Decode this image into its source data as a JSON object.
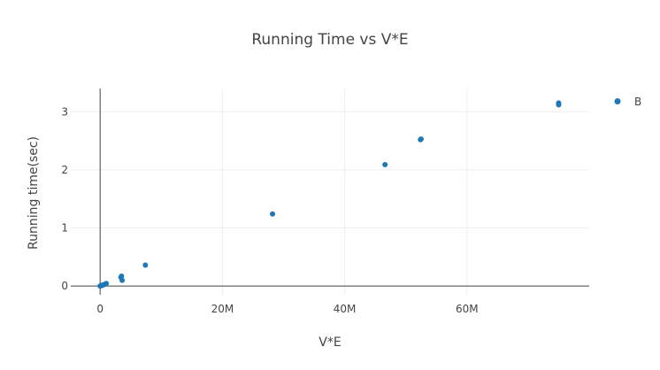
{
  "chart_data": {
    "type": "scatter",
    "title": "Running Time vs V*E",
    "xlabel": "V*E",
    "ylabel": "Running time(sec)",
    "xlim": [
      -4800000,
      80000000
    ],
    "ylim": [
      -0.15,
      3.4
    ],
    "x_ticks": [
      {
        "value": 0,
        "label": "0"
      },
      {
        "value": 20000000,
        "label": "20M"
      },
      {
        "value": 40000000,
        "label": "40M"
      },
      {
        "value": 60000000,
        "label": "60M"
      }
    ],
    "y_ticks": [
      {
        "value": 0,
        "label": "0"
      },
      {
        "value": 1,
        "label": "1"
      },
      {
        "value": 2,
        "label": "2"
      },
      {
        "value": 3,
        "label": "3"
      }
    ],
    "grid": true,
    "legend_position": "top-right",
    "series": [
      {
        "name": "B",
        "color": "#1f77b4",
        "points": [
          {
            "x": 0,
            "y": 0.0
          },
          {
            "x": 100000,
            "y": 0.005
          },
          {
            "x": 200000,
            "y": 0.01
          },
          {
            "x": 300000,
            "y": 0.012
          },
          {
            "x": 500000,
            "y": 0.02
          },
          {
            "x": 800000,
            "y": 0.03
          },
          {
            "x": 1000000,
            "y": 0.045
          },
          {
            "x": 3400000,
            "y": 0.15
          },
          {
            "x": 3500000,
            "y": 0.17
          },
          {
            "x": 3600000,
            "y": 0.1
          },
          {
            "x": 7400000,
            "y": 0.36
          },
          {
            "x": 28200000,
            "y": 1.24
          },
          {
            "x": 46600000,
            "y": 2.09
          },
          {
            "x": 52400000,
            "y": 2.52
          },
          {
            "x": 52500000,
            "y": 2.53
          },
          {
            "x": 75000000,
            "y": 3.15
          },
          {
            "x": 75000000,
            "y": 3.12
          }
        ]
      }
    ]
  }
}
